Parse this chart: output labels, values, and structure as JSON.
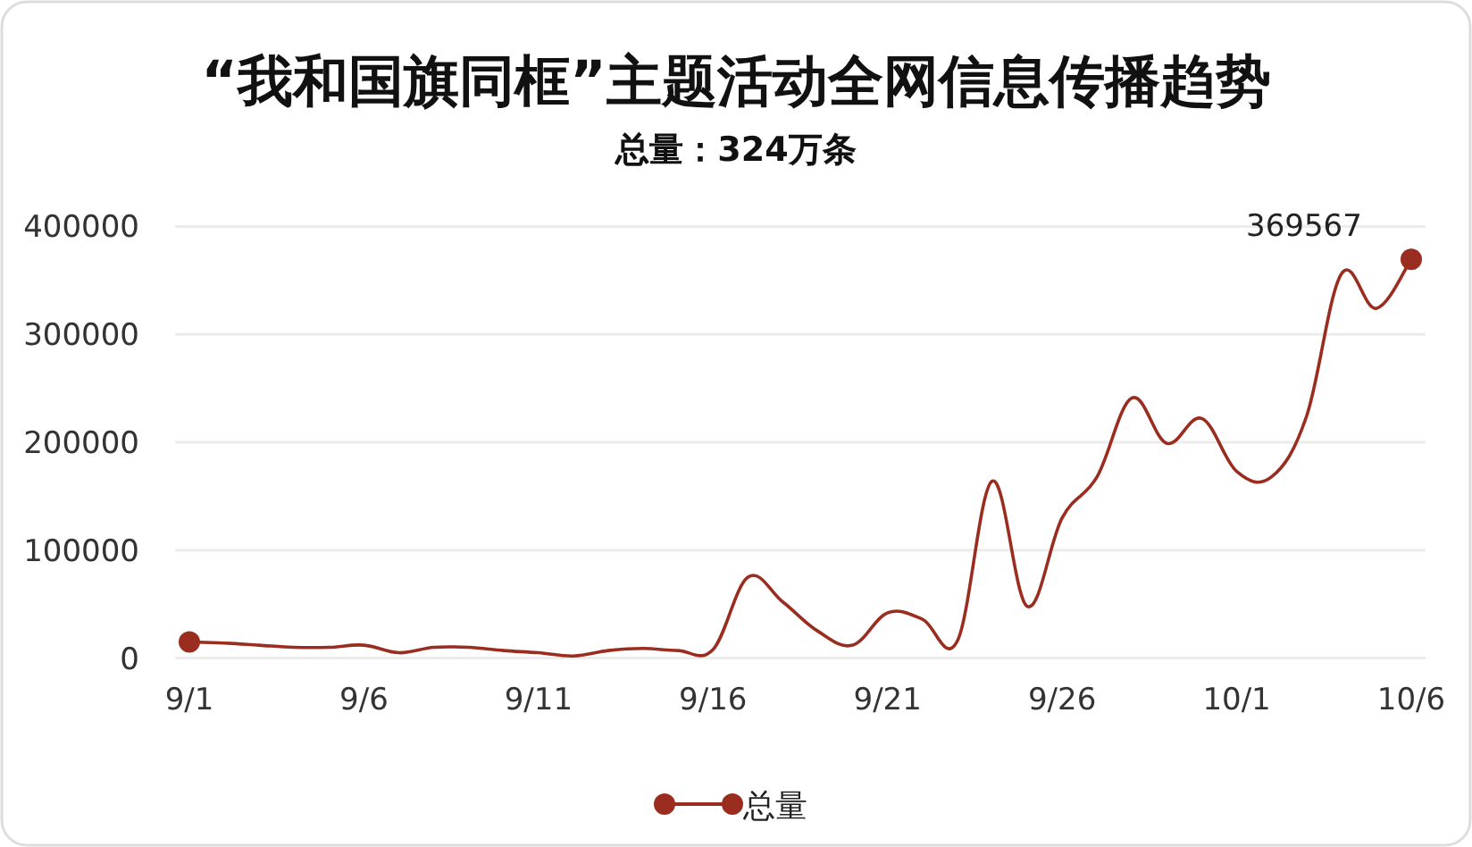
{
  "chart_data": {
    "type": "line",
    "title": "“我和国旗同框”主题活动全网信息传播趋势",
    "subtitle": "总量：324万条",
    "categories": [
      "9/1",
      null,
      null,
      null,
      null,
      "9/6",
      null,
      null,
      null,
      null,
      "9/11",
      null,
      null,
      null,
      null,
      "9/16",
      null,
      null,
      null,
      null,
      "9/21",
      null,
      null,
      null,
      null,
      "9/26",
      null,
      null,
      null,
      null,
      "10/1",
      null,
      null,
      null,
      null,
      "10/6"
    ],
    "series": [
      {
        "name": "总量",
        "color": "#9b2d20",
        "values": [
          15000,
          14000,
          12000,
          10000,
          10000,
          12000,
          5000,
          10000,
          10000,
          7000,
          5000,
          2000,
          7000,
          9000,
          7000,
          8000,
          75000,
          52000,
          25000,
          12000,
          42000,
          36000,
          16000,
          164000,
          48000,
          130000,
          168000,
          241000,
          199000,
          222000,
          173000,
          168000,
          224000,
          356000,
          324000,
          369567
        ],
        "value_labels": [
          null,
          null,
          null,
          null,
          null,
          null,
          null,
          null,
          null,
          null,
          null,
          null,
          null,
          null,
          null,
          null,
          null,
          null,
          null,
          null,
          null,
          null,
          null,
          null,
          null,
          null,
          null,
          null,
          null,
          null,
          null,
          null,
          null,
          null,
          null,
          "369567"
        ]
      }
    ],
    "ylim": [
      0,
      400000
    ],
    "yticks": [
      0,
      100000,
      200000,
      300000,
      400000
    ],
    "grid": "y",
    "legend": "bottom",
    "line_style": "solid"
  }
}
